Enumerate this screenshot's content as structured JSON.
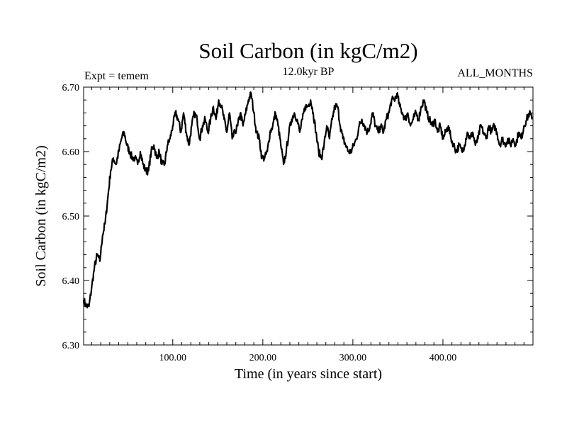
{
  "chart_data": {
    "type": "line",
    "title": "Soil Carbon (in kgC/m2)",
    "subtitle": "12.0kyr BP",
    "left_annotation": "Expt = temem",
    "right_annotation": "ALL_MONTHS",
    "xlabel": "Time (in years since start)",
    "ylabel": "Soil Carbon (in kgC/m2)",
    "xlim": [
      1,
      500
    ],
    "ylim": [
      6.3,
      6.7
    ],
    "x_ticks": [
      {
        "value": 100,
        "label": "100.00"
      },
      {
        "value": 200,
        "label": "200.00"
      },
      {
        "value": 300,
        "label": "300.00"
      },
      {
        "value": 400,
        "label": "400.00"
      }
    ],
    "y_ticks": [
      {
        "value": 6.3,
        "label": "6.30"
      },
      {
        "value": 6.4,
        "label": "6.40"
      },
      {
        "value": 6.5,
        "label": "6.50"
      },
      {
        "value": 6.6,
        "label": "6.60"
      },
      {
        "value": 6.7,
        "label": "6.70"
      }
    ],
    "series": [
      {
        "name": "Soil Carbon",
        "color": "#000000",
        "points": [
          [
            1,
            6.37
          ],
          [
            4,
            6.36
          ],
          [
            7,
            6.36
          ],
          [
            10,
            6.39
          ],
          [
            13,
            6.42
          ],
          [
            16,
            6.44
          ],
          [
            19,
            6.43
          ],
          [
            22,
            6.47
          ],
          [
            25,
            6.49
          ],
          [
            28,
            6.53
          ],
          [
            31,
            6.57
          ],
          [
            34,
            6.59
          ],
          [
            37,
            6.58
          ],
          [
            40,
            6.6
          ],
          [
            43,
            6.62
          ],
          [
            46,
            6.63
          ],
          [
            49,
            6.61
          ],
          [
            52,
            6.6
          ],
          [
            55,
            6.59
          ],
          [
            58,
            6.59
          ],
          [
            61,
            6.58
          ],
          [
            64,
            6.6
          ],
          [
            67,
            6.58
          ],
          [
            70,
            6.57
          ],
          [
            73,
            6.57
          ],
          [
            76,
            6.6
          ],
          [
            79,
            6.61
          ],
          [
            82,
            6.59
          ],
          [
            85,
            6.6
          ],
          [
            88,
            6.58
          ],
          [
            91,
            6.58
          ],
          [
            94,
            6.61
          ],
          [
            97,
            6.62
          ],
          [
            100,
            6.64
          ],
          [
            103,
            6.66
          ],
          [
            106,
            6.65
          ],
          [
            109,
            6.63
          ],
          [
            112,
            6.66
          ],
          [
            115,
            6.63
          ],
          [
            118,
            6.61
          ],
          [
            121,
            6.64
          ],
          [
            124,
            6.66
          ],
          [
            127,
            6.65
          ],
          [
            130,
            6.62
          ],
          [
            133,
            6.64
          ],
          [
            136,
            6.65
          ],
          [
            139,
            6.63
          ],
          [
            142,
            6.65
          ],
          [
            145,
            6.67
          ],
          [
            148,
            6.65
          ],
          [
            151,
            6.68
          ],
          [
            154,
            6.67
          ],
          [
            157,
            6.65
          ],
          [
            160,
            6.63
          ],
          [
            163,
            6.66
          ],
          [
            166,
            6.62
          ],
          [
            169,
            6.63
          ],
          [
            172,
            6.64
          ],
          [
            175,
            6.66
          ],
          [
            178,
            6.64
          ],
          [
            181,
            6.66
          ],
          [
            184,
            6.68
          ],
          [
            187,
            6.69
          ],
          [
            190,
            6.66
          ],
          [
            193,
            6.63
          ],
          [
            196,
            6.62
          ],
          [
            199,
            6.59
          ],
          [
            202,
            6.59
          ],
          [
            205,
            6.6
          ],
          [
            208,
            6.63
          ],
          [
            211,
            6.64
          ],
          [
            214,
            6.66
          ],
          [
            217,
            6.64
          ],
          [
            220,
            6.61
          ],
          [
            223,
            6.58
          ],
          [
            226,
            6.6
          ],
          [
            229,
            6.63
          ],
          [
            232,
            6.65
          ],
          [
            235,
            6.66
          ],
          [
            238,
            6.65
          ],
          [
            241,
            6.63
          ],
          [
            244,
            6.65
          ],
          [
            247,
            6.67
          ],
          [
            250,
            6.67
          ],
          [
            253,
            6.68
          ],
          [
            256,
            6.66
          ],
          [
            259,
            6.63
          ],
          [
            262,
            6.6
          ],
          [
            265,
            6.59
          ],
          [
            268,
            6.61
          ],
          [
            271,
            6.64
          ],
          [
            274,
            6.62
          ],
          [
            277,
            6.65
          ],
          [
            280,
            6.67
          ],
          [
            283,
            6.67
          ],
          [
            286,
            6.64
          ],
          [
            289,
            6.62
          ],
          [
            292,
            6.61
          ],
          [
            295,
            6.6
          ],
          [
            298,
            6.6
          ],
          [
            301,
            6.61
          ],
          [
            304,
            6.62
          ],
          [
            307,
            6.64
          ],
          [
            310,
            6.65
          ],
          [
            313,
            6.64
          ],
          [
            316,
            6.63
          ],
          [
            319,
            6.64
          ],
          [
            322,
            6.66
          ],
          [
            325,
            6.64
          ],
          [
            328,
            6.63
          ],
          [
            331,
            6.64
          ],
          [
            334,
            6.63
          ],
          [
            337,
            6.65
          ],
          [
            340,
            6.66
          ],
          [
            343,
            6.68
          ],
          [
            346,
            6.68
          ],
          [
            349,
            6.69
          ],
          [
            352,
            6.67
          ],
          [
            355,
            6.66
          ],
          [
            358,
            6.65
          ],
          [
            361,
            6.66
          ],
          [
            364,
            6.64
          ],
          [
            367,
            6.65
          ],
          [
            370,
            6.66
          ],
          [
            373,
            6.65
          ],
          [
            376,
            6.67
          ],
          [
            379,
            6.68
          ],
          [
            382,
            6.66
          ],
          [
            385,
            6.65
          ],
          [
            388,
            6.64
          ],
          [
            391,
            6.65
          ],
          [
            394,
            6.63
          ],
          [
            397,
            6.64
          ],
          [
            400,
            6.62
          ],
          [
            403,
            6.63
          ],
          [
            406,
            6.64
          ],
          [
            409,
            6.62
          ],
          [
            412,
            6.61
          ],
          [
            415,
            6.6
          ],
          [
            418,
            6.61
          ],
          [
            421,
            6.6
          ],
          [
            424,
            6.61
          ],
          [
            427,
            6.63
          ],
          [
            430,
            6.62
          ],
          [
            433,
            6.63
          ],
          [
            436,
            6.61
          ],
          [
            439,
            6.62
          ],
          [
            442,
            6.64
          ],
          [
            445,
            6.63
          ],
          [
            448,
            6.62
          ],
          [
            451,
            6.64
          ],
          [
            454,
            6.63
          ],
          [
            457,
            6.64
          ],
          [
            460,
            6.63
          ],
          [
            463,
            6.61
          ],
          [
            466,
            6.62
          ],
          [
            469,
            6.61
          ],
          [
            472,
            6.62
          ],
          [
            475,
            6.61
          ],
          [
            478,
            6.62
          ],
          [
            481,
            6.61
          ],
          [
            484,
            6.63
          ],
          [
            487,
            6.62
          ],
          [
            490,
            6.64
          ],
          [
            493,
            6.65
          ],
          [
            496,
            6.66
          ],
          [
            499,
            6.65
          ]
        ]
      }
    ]
  }
}
